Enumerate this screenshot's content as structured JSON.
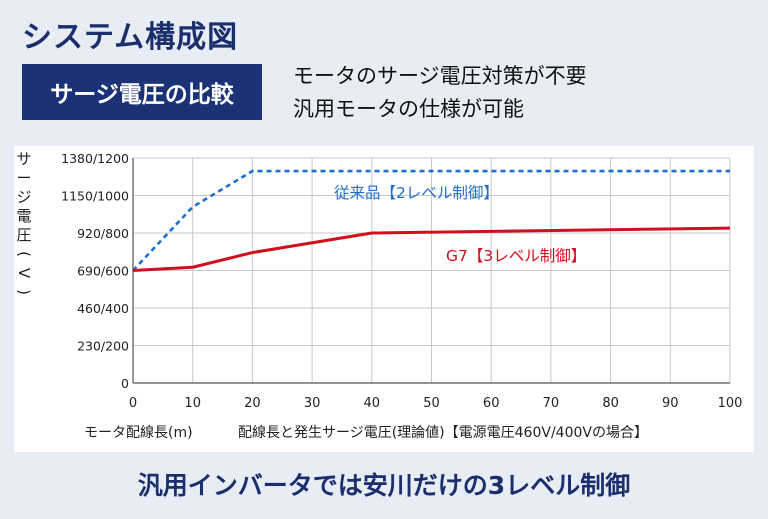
{
  "header": {
    "title": "システム構成図",
    "badge": "サージ電圧の比較",
    "desc_line1": "モータのサージ電圧対策が不要",
    "desc_line2": "汎用モータの仕様が可能"
  },
  "footer": "汎用インバータでは安川だけの3レベル制御",
  "colors": {
    "navy": "#1b3276",
    "conventional": "#1f6fd0",
    "g7": "#d0101e",
    "grid": "#c9c9c9"
  },
  "chart_data": {
    "type": "line",
    "ylabel": "サージ電圧(V)",
    "xlabel_left": "モータ配線長(m)",
    "xlabel_right": "配線長と発生サージ電圧(理論値)【電源電圧460V/400Vの場合】",
    "x_ticks": [
      0,
      10,
      20,
      30,
      40,
      50,
      60,
      70,
      80,
      90,
      100
    ],
    "y_ticks": [
      {
        "value": 0,
        "label": "0"
      },
      {
        "value": 230,
        "label": "230/200"
      },
      {
        "value": 460,
        "label": "460/400"
      },
      {
        "value": 690,
        "label": "690/600"
      },
      {
        "value": 920,
        "label": "920/800"
      },
      {
        "value": 1150,
        "label": "1150/1000"
      },
      {
        "value": 1380,
        "label": "1380/1200"
      }
    ],
    "xlim": [
      0,
      100
    ],
    "ylim": [
      0,
      1380
    ],
    "grid": true,
    "series": [
      {
        "name": "従来品【2レベル制御】",
        "style": "dashed",
        "color": "#1f6fd0",
        "x": [
          0,
          10,
          20,
          100
        ],
        "y": [
          690,
          1080,
          1300,
          1300
        ]
      },
      {
        "name": "G7【3レベル制御】",
        "style": "solid",
        "color": "#d0101e",
        "x": [
          0,
          10,
          20,
          40,
          100
        ],
        "y": [
          690,
          710,
          800,
          920,
          950
        ]
      }
    ]
  }
}
